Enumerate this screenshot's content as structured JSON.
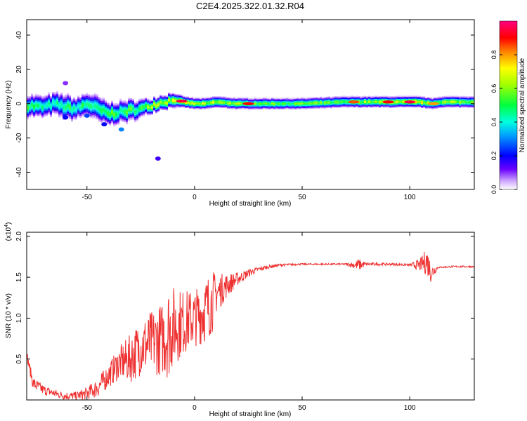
{
  "title": "C2E4.2025.322.01.32.R04",
  "colorbar": {
    "label": "Normalized spectral amplitude",
    "ticks": [
      "0.0",
      "0.2",
      "0.4",
      "0.6",
      "0.8"
    ],
    "tick_values": [
      0.0,
      0.2,
      0.4,
      0.6,
      0.8
    ],
    "range": [
      0,
      1
    ]
  },
  "chart_data": [
    {
      "type": "heatmap",
      "xlabel": "Height of straight line (km)",
      "ylabel": "Frequency (Hz)",
      "xlim": [
        -78,
        130
      ],
      "ylim": [
        -50,
        49
      ],
      "xticks": [
        "-50",
        "0",
        "50",
        "100"
      ],
      "xtick_values": [
        -50,
        0,
        50,
        100
      ],
      "yticks": [
        "40",
        "20",
        "0",
        "-20",
        "-40"
      ],
      "ytick_values": [
        40,
        20,
        0,
        -20,
        -40
      ],
      "ridge": {
        "x": [
          -78,
          -70,
          -65,
          -60,
          -55,
          -50,
          -45,
          -40,
          -35,
          -30,
          -25,
          -20,
          -15,
          -10,
          -5,
          0,
          5,
          10,
          20,
          30,
          50,
          70,
          75,
          90,
          100,
          105,
          110,
          115,
          130
        ],
        "freq": [
          -1,
          -2,
          0,
          -2,
          -3,
          0,
          -3,
          -6,
          -5,
          -4,
          -3,
          -1,
          1,
          2,
          1,
          0,
          0,
          1,
          0,
          0,
          0,
          1,
          1,
          1,
          1,
          1,
          0,
          1,
          1
        ],
        "amp": [
          0.5,
          0.45,
          0.4,
          0.5,
          0.45,
          0.5,
          0.45,
          0.55,
          0.5,
          0.5,
          0.55,
          0.6,
          0.6,
          0.65,
          0.7,
          0.65,
          0.6,
          0.65,
          0.6,
          0.55,
          0.55,
          0.55,
          0.6,
          0.65,
          0.7,
          0.7,
          0.6,
          0.6,
          0.6
        ],
        "width": [
          6,
          6,
          6,
          7,
          6,
          6,
          7,
          6,
          6,
          6,
          5,
          4,
          4,
          4,
          3,
          3,
          3,
          3,
          3,
          3,
          3,
          3,
          3,
          3,
          3,
          3,
          3,
          3,
          3
        ]
      },
      "hotspots": [
        {
          "x": -6,
          "freq": 1.5,
          "amp": 0.95
        },
        {
          "x": 25,
          "freq": 0,
          "amp": 0.9
        },
        {
          "x": 74,
          "freq": 1,
          "amp": 0.85
        },
        {
          "x": 90,
          "freq": 1,
          "amp": 0.9
        },
        {
          "x": 100,
          "freq": 1,
          "amp": 0.95
        },
        {
          "x": 111,
          "freq": 0,
          "amp": 0.8
        }
      ],
      "scatter_blobs": [
        {
          "x": -60,
          "freq": -8,
          "amp": 0.2
        },
        {
          "x": -50,
          "freq": -7,
          "amp": 0.25
        },
        {
          "x": -42,
          "freq": -12,
          "amp": 0.2
        },
        {
          "x": -34,
          "freq": -15,
          "amp": 0.3
        },
        {
          "x": -17,
          "freq": -32,
          "amp": 0.15
        },
        {
          "x": -60,
          "freq": 12,
          "amp": 0.1
        }
      ]
    },
    {
      "type": "line",
      "xlabel": "Height of straight line (km)",
      "ylabel": "SNR (10 * v/v)",
      "multiplier": "(x10",
      "multiplier_exp": "4",
      "multiplier_close": ")",
      "xlim": [
        -78,
        130
      ],
      "ylim": [
        0,
        2.05
      ],
      "xticks": [
        "-50",
        "0",
        "50",
        "100"
      ],
      "xtick_values": [
        -50,
        0,
        50,
        100
      ],
      "yticks": [
        "2.0",
        "1.5",
        "1.0",
        "0.5"
      ],
      "ytick_values": [
        2.0,
        1.5,
        1.0,
        0.5
      ],
      "color": "#ee3030",
      "series": [
        {
          "x": [
            -78,
            -75,
            -70,
            -65,
            -60,
            -55,
            -50,
            -45,
            -40,
            -35,
            -30,
            -25,
            -20,
            -15,
            -12,
            -10,
            -5,
            0,
            5,
            8,
            10,
            15,
            20,
            25,
            30,
            35,
            40,
            50,
            60,
            70,
            75,
            76,
            80,
            90,
            100,
            105,
            108,
            110,
            113,
            120,
            130
          ],
          "y": [
            0.55,
            0.2,
            0.12,
            0.08,
            0.05,
            0.05,
            0.08,
            0.15,
            0.3,
            0.45,
            0.5,
            0.65,
            0.7,
            0.75,
            0.85,
            0.9,
            0.95,
            1.0,
            1.1,
            1.2,
            1.3,
            1.4,
            1.48,
            1.55,
            1.6,
            1.63,
            1.65,
            1.66,
            1.66,
            1.66,
            1.65,
            1.65,
            1.66,
            1.66,
            1.65,
            1.65,
            1.7,
            1.55,
            1.62,
            1.63,
            1.63
          ],
          "noise": [
            0.05,
            0.08,
            0.06,
            0.05,
            0.05,
            0.05,
            0.08,
            0.12,
            0.15,
            0.2,
            0.3,
            0.35,
            0.4,
            0.45,
            0.6,
            0.5,
            0.4,
            0.35,
            0.4,
            0.4,
            0.25,
            0.15,
            0.08,
            0.05,
            0.03,
            0.02,
            0.015,
            0.01,
            0.01,
            0.01,
            0.05,
            0.08,
            0.02,
            0.015,
            0.015,
            0.08,
            0.18,
            0.12,
            0.01,
            0.01,
            0.01
          ]
        }
      ]
    }
  ]
}
